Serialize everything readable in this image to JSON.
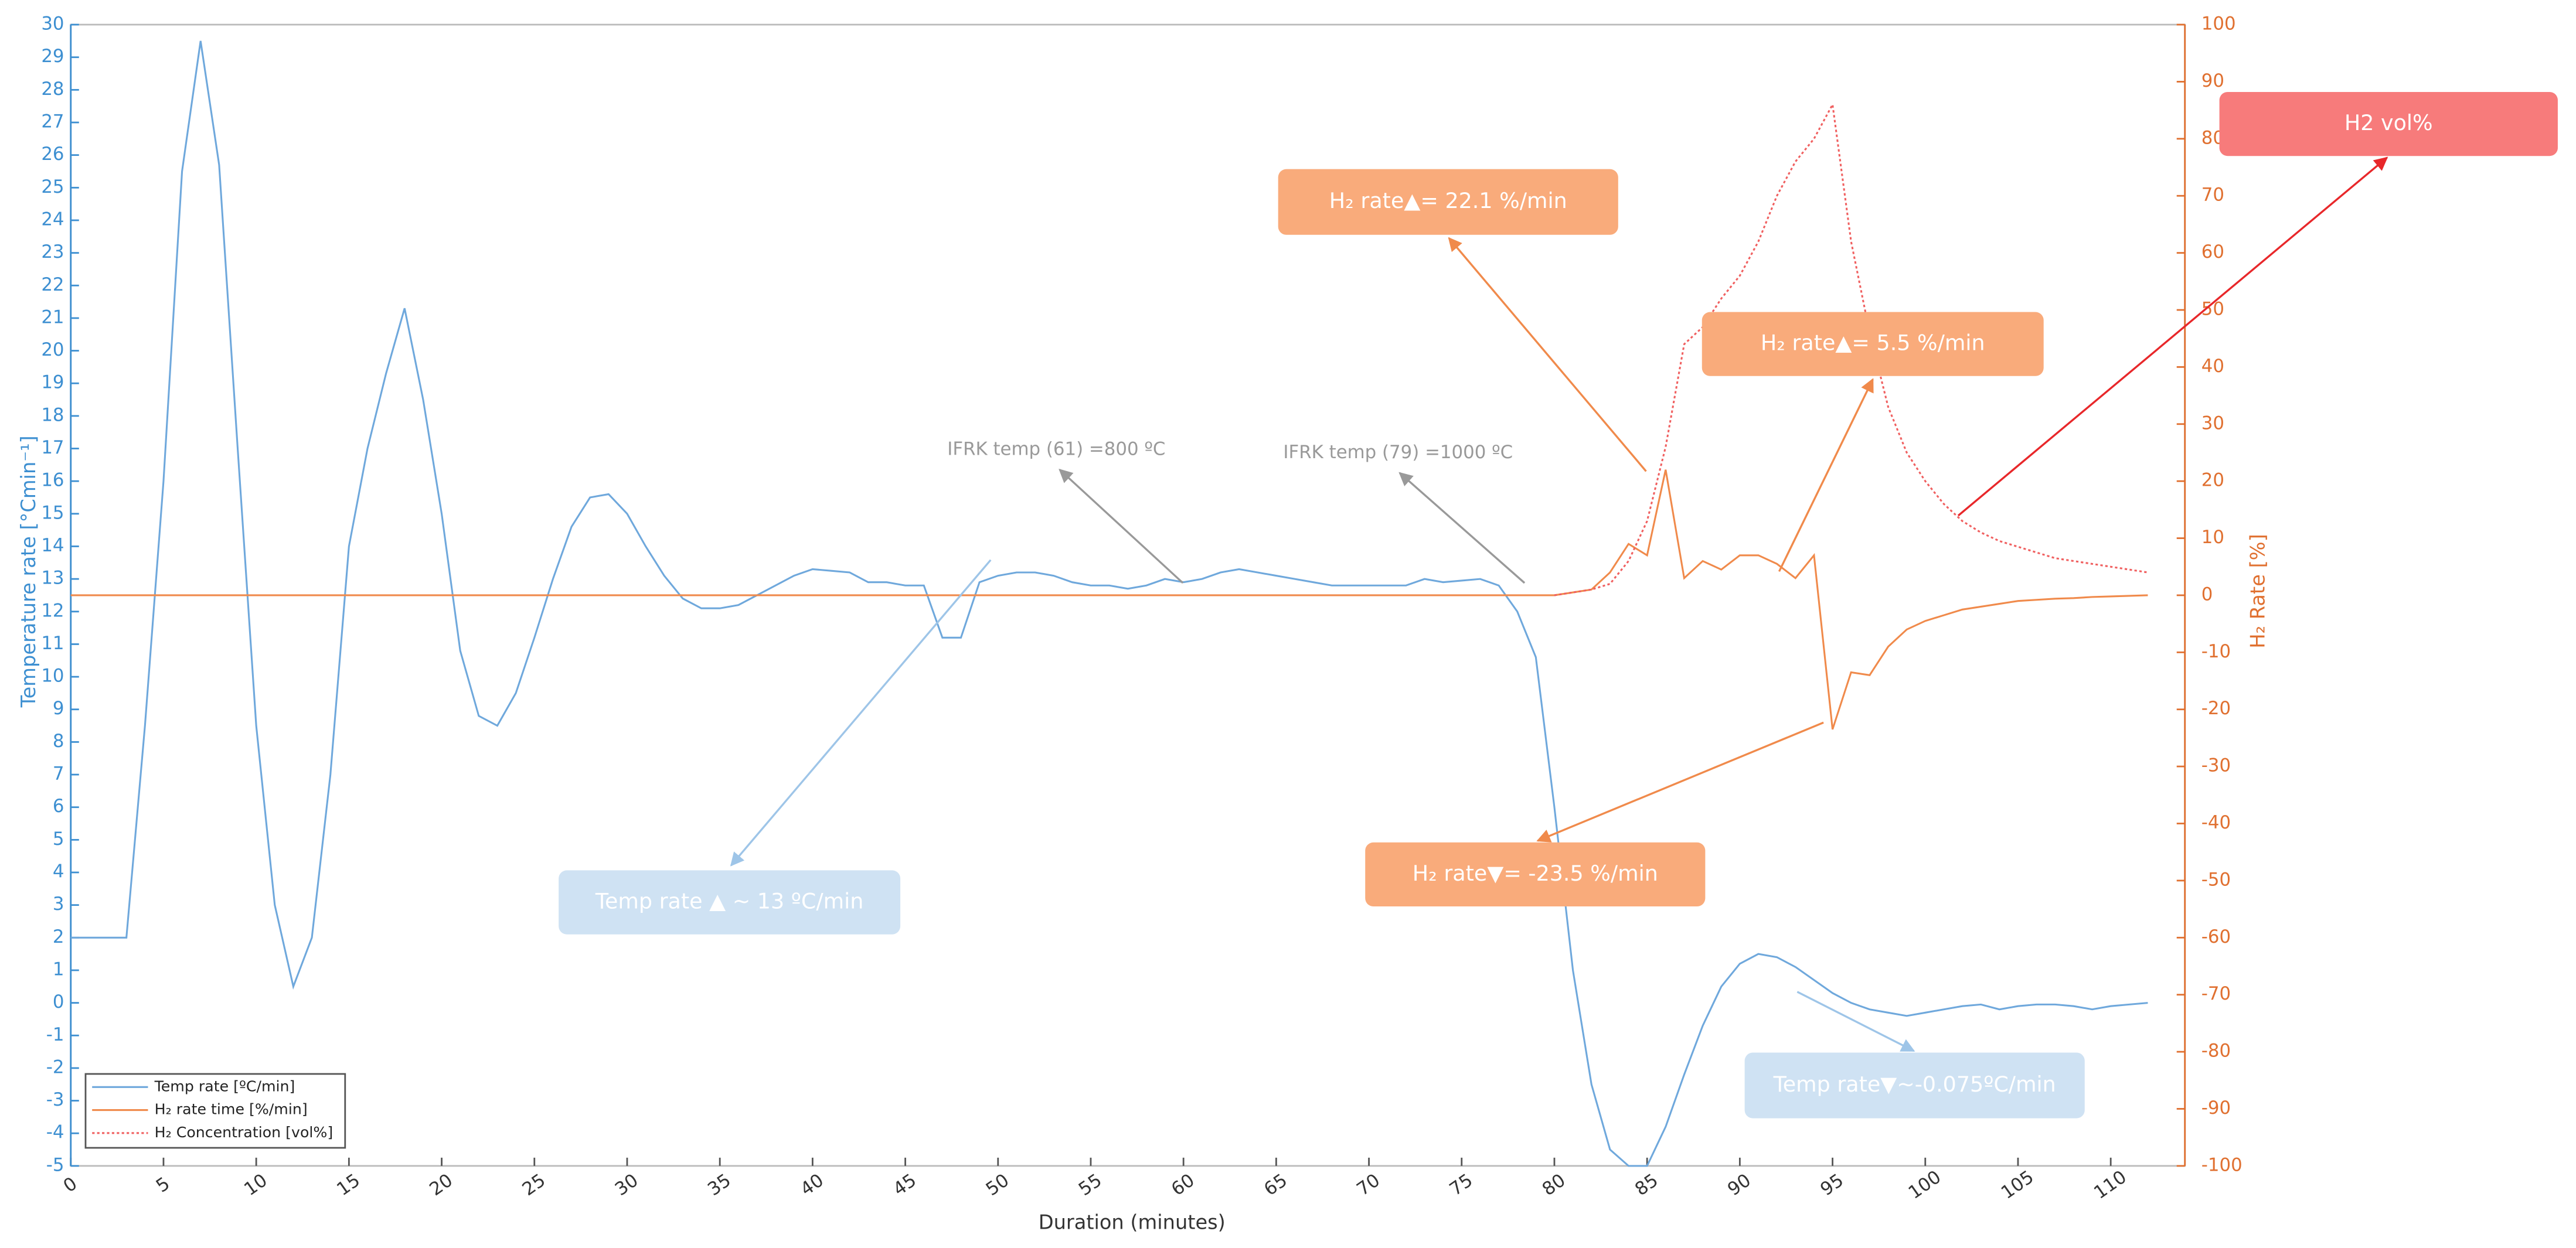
{
  "chart_data": {
    "type": "line",
    "x_label": "Duration (minutes)",
    "y_label": "Temperature rate [°Cmin⁻¹]",
    "y2_label": "H₂ Rate [%]",
    "xlim": [
      0,
      114
    ],
    "xticks": [
      0,
      5,
      10,
      15,
      20,
      25,
      30,
      35,
      40,
      45,
      50,
      55,
      60,
      65,
      70,
      75,
      80,
      85,
      90,
      95,
      100,
      105,
      110
    ],
    "ylim": [
      -5,
      30
    ],
    "yticks": [
      -5,
      -4,
      -3,
      -2,
      -1,
      0,
      1,
      2,
      3,
      4,
      5,
      6,
      7,
      8,
      9,
      10,
      11,
      12,
      13,
      14,
      15,
      16,
      17,
      18,
      19,
      20,
      21,
      22,
      23,
      24,
      25,
      26,
      27,
      28,
      29,
      30
    ],
    "y2lim": [
      -100,
      100
    ],
    "y2ticks": [
      -100,
      -90,
      -80,
      -70,
      -60,
      -50,
      -40,
      -30,
      -20,
      -10,
      0,
      10,
      20,
      30,
      40,
      50,
      60,
      70,
      80,
      90,
      100
    ],
    "legend": "lower left",
    "x": [
      0,
      1,
      2,
      3,
      4,
      5,
      6,
      7,
      8,
      9,
      10,
      11,
      12,
      13,
      14,
      15,
      16,
      17,
      18,
      19,
      20,
      21,
      22,
      23,
      24,
      25,
      26,
      27,
      28,
      29,
      30,
      31,
      32,
      33,
      34,
      35,
      36,
      37,
      38,
      39,
      40,
      41,
      42,
      43,
      44,
      45,
      46,
      47,
      48,
      49,
      50,
      51,
      52,
      53,
      54,
      55,
      56,
      57,
      58,
      59,
      60,
      61,
      62,
      63,
      64,
      65,
      66,
      67,
      68,
      69,
      70,
      71,
      72,
      73,
      74,
      75,
      76,
      77,
      78,
      79,
      80,
      81,
      82,
      83,
      84,
      85,
      86,
      87,
      88,
      89,
      90,
      91,
      92,
      93,
      94,
      95,
      96,
      97,
      98,
      99,
      100,
      101,
      102,
      103,
      104,
      105,
      106,
      107,
      108,
      109,
      110,
      111,
      112
    ],
    "series": [
      {
        "name": "Temp rate [ºC/min]",
        "color": "#6fa8dc",
        "axis": "y",
        "style": "solid",
        "values": [
          2,
          2,
          2,
          2,
          8.5,
          16,
          25.5,
          29.5,
          25.7,
          17,
          8.5,
          3,
          0.5,
          2,
          7,
          14,
          17,
          19.3,
          21.3,
          18.5,
          15,
          10.8,
          8.8,
          8.5,
          9.5,
          11.2,
          13,
          14.6,
          15.5,
          15.6,
          15,
          14,
          13.1,
          12.4,
          12.1,
          12.1,
          12.2,
          12.5,
          12.8,
          13.1,
          13.3,
          13.25,
          13.2,
          12.9,
          12.9,
          12.8,
          12.8,
          11.2,
          11.2,
          12.9,
          13.1,
          13.2,
          13.2,
          13.1,
          12.9,
          12.8,
          12.8,
          12.7,
          12.8,
          13,
          12.9,
          13,
          13.2,
          13.3,
          13.2,
          13.1,
          13,
          12.9,
          12.8,
          12.8,
          12.8,
          12.8,
          12.8,
          13,
          12.9,
          12.95,
          13,
          12.8,
          12,
          10.6,
          6,
          1,
          -2.5,
          -4.5,
          -5,
          -5,
          -3.8,
          -2.2,
          -0.7,
          0.5,
          1.2,
          1.5,
          1.4,
          1.1,
          0.7,
          0.3,
          0,
          -0.2,
          -0.3,
          -0.4,
          -0.3,
          -0.2,
          -0.1,
          -0.05,
          -0.2,
          -0.1,
          -0.05,
          -0.05,
          -0.1,
          -0.2,
          -0.1,
          -0.05,
          0
        ]
      },
      {
        "name": "H₂ rate time [%/min]",
        "color": "#f08a4b",
        "axis": "y2",
        "style": "solid",
        "values": [
          0,
          0,
          0,
          0,
          0,
          0,
          0,
          0,
          0,
          0,
          0,
          0,
          0,
          0,
          0,
          0,
          0,
          0,
          0,
          0,
          0,
          0,
          0,
          0,
          0,
          0,
          0,
          0,
          0,
          0,
          0,
          0,
          0,
          0,
          0,
          0,
          0,
          0,
          0,
          0,
          0,
          0,
          0,
          0,
          0,
          0,
          0,
          0,
          0,
          0,
          0,
          0,
          0,
          0,
          0,
          0,
          0,
          0,
          0,
          0,
          0,
          0,
          0,
          0,
          0,
          0,
          0,
          0,
          0,
          0,
          0,
          0,
          0,
          0,
          0,
          0,
          0,
          0,
          0,
          0,
          0,
          0.5,
          1,
          4,
          9,
          7,
          22,
          3,
          6,
          4.5,
          7,
          7,
          5.5,
          3,
          7,
          -23.5,
          -13.5,
          -14,
          -9,
          -6,
          -4.5,
          -3.5,
          -2.5,
          -2,
          -1.5,
          -1,
          -0.8,
          -0.6,
          -0.5,
          -0.3,
          -0.2,
          -0.1,
          0
        ]
      },
      {
        "name": "H₂ Concentration [vol%]",
        "color": "#f06060",
        "axis": "y2",
        "style": "dotted",
        "values": [
          null,
          null,
          null,
          null,
          null,
          null,
          null,
          null,
          null,
          null,
          null,
          null,
          null,
          null,
          null,
          null,
          null,
          null,
          null,
          null,
          null,
          null,
          null,
          null,
          null,
          null,
          null,
          null,
          null,
          null,
          null,
          null,
          null,
          null,
          null,
          null,
          null,
          null,
          null,
          null,
          null,
          null,
          null,
          null,
          null,
          null,
          null,
          null,
          null,
          null,
          null,
          null,
          null,
          null,
          null,
          null,
          null,
          null,
          null,
          null,
          null,
          null,
          null,
          null,
          null,
          null,
          null,
          null,
          null,
          null,
          null,
          null,
          null,
          null,
          null,
          null,
          null,
          null,
          null,
          null,
          0,
          0.5,
          1,
          2,
          6,
          13,
          26,
          44,
          47,
          52,
          56,
          62,
          70,
          76,
          80,
          86,
          62,
          46,
          33,
          25,
          20,
          16,
          13,
          11,
          9.5,
          8.5,
          7.5,
          6.5,
          6,
          5.5,
          5,
          4.5,
          4
        ]
      }
    ],
    "annotations": [
      {
        "text": "Temp rate ▲ ~ 13 ºC/min"
      },
      {
        "text": "IFRK temp (61) =800 ºC"
      },
      {
        "text": "IFRK temp (79) =1000 ºC"
      },
      {
        "text": "H₂ rate▲= 22.1 %/min"
      },
      {
        "text": "H₂ rate▲= 5.5 %/min"
      },
      {
        "text": "H₂ rate▼= -23.5 %/min"
      },
      {
        "text": "Temp rate▼~-0.075ºC/min"
      },
      {
        "text": "H2 vol%"
      }
    ]
  }
}
